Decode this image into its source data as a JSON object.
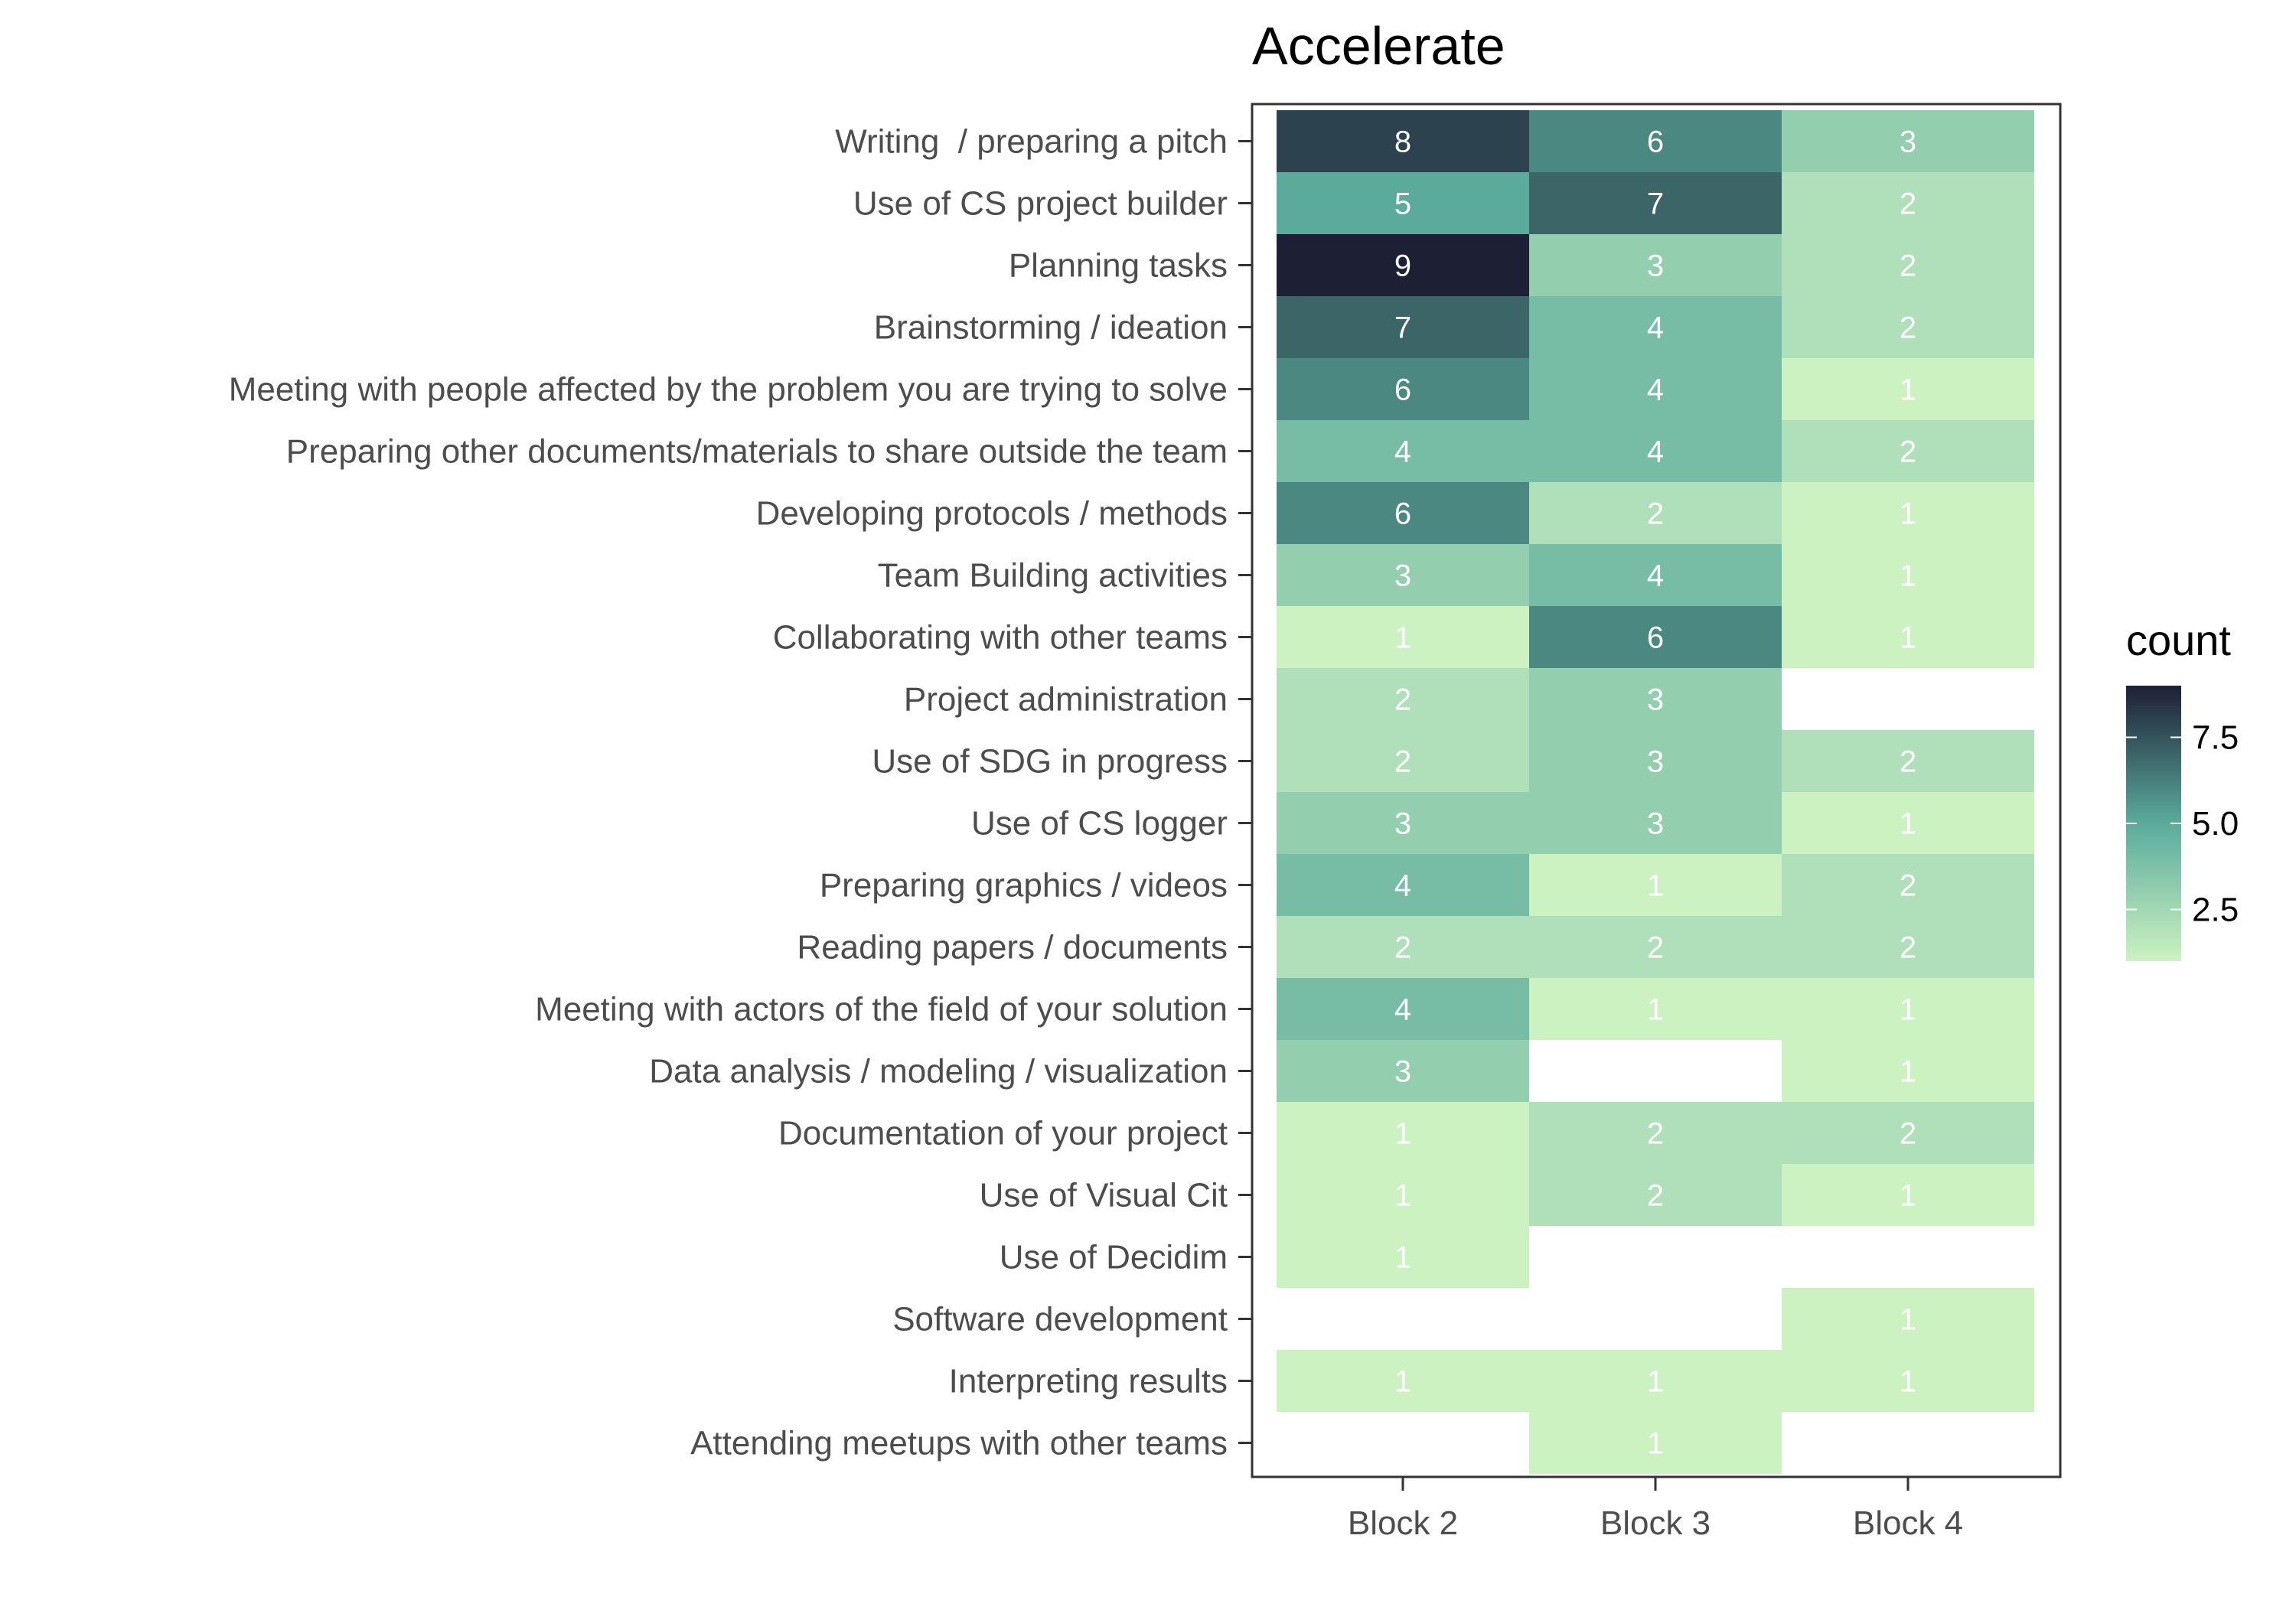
{
  "chart_data": {
    "type": "heatmap",
    "title": "Accelerate",
    "xlabel": "",
    "ylabel": "",
    "x_categories": [
      "Block 2",
      "Block 3",
      "Block 4"
    ],
    "y_categories": [
      "Writing  / preparing a pitch",
      "Use of CS project builder",
      "Planning tasks",
      "Brainstorming / ideation",
      "Meeting with people affected by the problem you are trying to solve",
      "Preparing other documents/materials to share outside the team",
      "Developing protocols / methods",
      "Team Building activities",
      "Collaborating with other teams",
      "Project administration",
      "Use of SDG in progress",
      "Use of CS logger",
      "Preparing graphics / videos",
      "Reading papers / documents",
      "Meeting with actors of the field of your solution",
      "Data analysis / modeling / visualization",
      "Documentation of your project",
      "Use of Visual Cit",
      "Use of Decidim",
      "Software development",
      "Interpreting results",
      "Attending meetups with other teams"
    ],
    "values": [
      [
        8,
        6,
        3
      ],
      [
        5,
        7,
        2
      ],
      [
        9,
        3,
        2
      ],
      [
        7,
        4,
        2
      ],
      [
        6,
        4,
        1
      ],
      [
        4,
        4,
        2
      ],
      [
        6,
        2,
        1
      ],
      [
        3,
        4,
        1
      ],
      [
        1,
        6,
        1
      ],
      [
        2,
        3,
        null
      ],
      [
        2,
        3,
        2
      ],
      [
        3,
        3,
        1
      ],
      [
        4,
        1,
        2
      ],
      [
        2,
        2,
        2
      ],
      [
        4,
        1,
        1
      ],
      [
        3,
        null,
        1
      ],
      [
        1,
        2,
        2
      ],
      [
        1,
        2,
        1
      ],
      [
        1,
        null,
        null
      ],
      [
        null,
        null,
        1
      ],
      [
        1,
        1,
        1
      ],
      [
        null,
        1,
        null
      ]
    ],
    "legend": {
      "title": "count",
      "placement": "right",
      "ticks": [
        7.5,
        5.0,
        2.5
      ],
      "tick_labels": [
        "7.5",
        "5.0",
        "2.5"
      ],
      "range": [
        1,
        9
      ]
    },
    "colors": {
      "low": "#ccf2c2",
      "mid": "#5aab9c",
      "high": "#1d1f34"
    }
  }
}
